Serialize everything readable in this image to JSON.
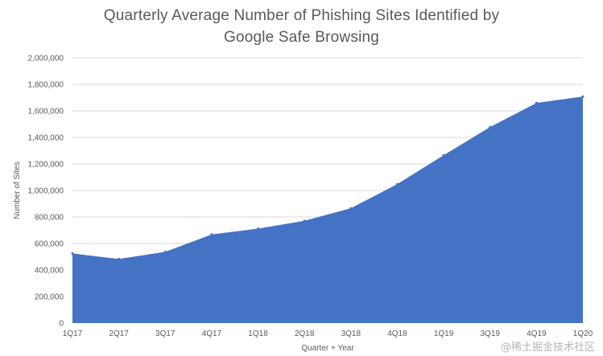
{
  "watermark": "@稀土掘金技术社区",
  "chart_data": {
    "type": "area",
    "title_lines": [
      "Quarterly Average Number of Phishing Sites Identified by",
      "Google Safe Browsing"
    ],
    "xlabel": "Quarter + Year",
    "ylabel": "Number of Sites",
    "categories": [
      "1Q17",
      "2Q17",
      "3Q17",
      "4Q17",
      "1Q18",
      "2Q18",
      "3Q18",
      "4Q18",
      "1Q19",
      "3Q19",
      "4Q19",
      "1Q20"
    ],
    "values": [
      525000,
      483000,
      537000,
      668000,
      712000,
      771000,
      866000,
      1048000,
      1266000,
      1478000,
      1660000,
      1708000
    ],
    "ylim": [
      0,
      2000000
    ],
    "yticks": [
      0,
      200000,
      400000,
      600000,
      800000,
      1000000,
      1200000,
      1400000,
      1600000,
      1800000,
      2000000
    ],
    "ytick_labels": [
      "0",
      "200,000",
      "400,000",
      "600,000",
      "800,000",
      "1,000,000",
      "1,200,000",
      "1,400,000",
      "1,600,000",
      "1,800,000",
      "2,000,000"
    ],
    "grid": true,
    "fill_color": "#4472c4",
    "grid_color": "#d9d9d9"
  }
}
